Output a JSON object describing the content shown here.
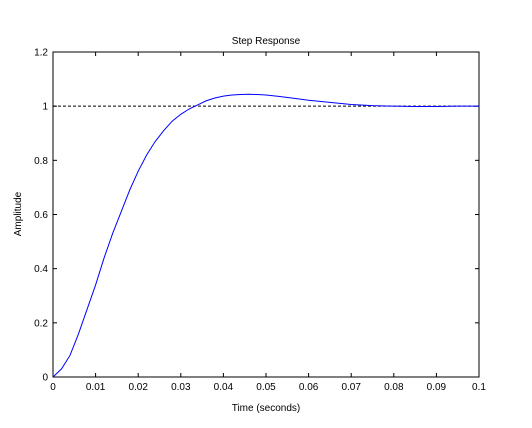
{
  "chart_data": {
    "type": "line",
    "title": "Step Response",
    "xlabel": "Time (seconds)",
    "ylabel": "Amplitude",
    "xlim": [
      0,
      0.1
    ],
    "ylim": [
      0,
      1.2
    ],
    "x_ticks": [
      "0",
      "0.01",
      "0.02",
      "0.03",
      "0.04",
      "0.05",
      "0.06",
      "0.07",
      "0.08",
      "0.09",
      "0.1"
    ],
    "y_ticks": [
      "0",
      "0.2",
      "0.4",
      "0.6",
      "0.8",
      "1",
      "1.2"
    ],
    "grid": false,
    "reference_line": {
      "y": 1,
      "style": "dashed",
      "color": "#000000"
    },
    "series": [
      {
        "color": "#0000ff",
        "x": [
          0,
          0.002,
          0.004,
          0.006,
          0.008,
          0.01,
          0.012,
          0.014,
          0.016,
          0.018,
          0.02,
          0.022,
          0.024,
          0.026,
          0.028,
          0.03,
          0.032,
          0.034,
          0.036,
          0.038,
          0.04,
          0.042,
          0.044,
          0.046,
          0.048,
          0.05,
          0.053,
          0.056,
          0.06,
          0.065,
          0.07,
          0.075,
          0.08,
          0.085,
          0.09,
          0.095,
          0.1
        ],
        "y": [
          0,
          0.03,
          0.08,
          0.16,
          0.25,
          0.34,
          0.44,
          0.53,
          0.61,
          0.69,
          0.76,
          0.82,
          0.87,
          0.91,
          0.945,
          0.97,
          0.99,
          1.005,
          1.02,
          1.03,
          1.037,
          1.041,
          1.043,
          1.044,
          1.043,
          1.041,
          1.036,
          1.03,
          1.022,
          1.014,
          1.006,
          1.002,
          1.0,
          0.999,
          0.999,
          1.0,
          1.0
        ]
      }
    ]
  }
}
